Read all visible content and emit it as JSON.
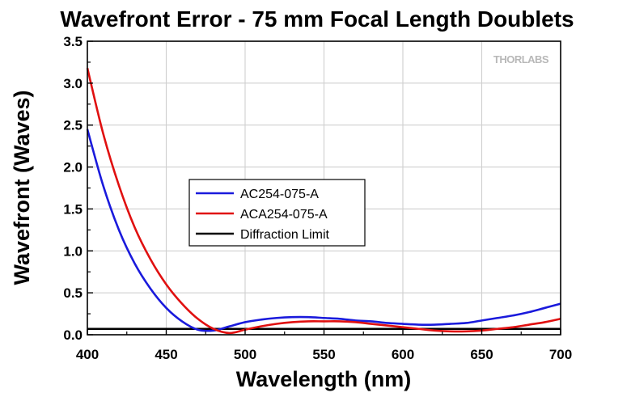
{
  "watermark": "THORLABS",
  "chart_data": {
    "type": "line",
    "title": "Wavefront Error - 75 mm Focal Length Doublets",
    "xlabel": "Wavelength (nm)",
    "ylabel": "Wavefront (Waves)",
    "xlim": [
      400,
      700
    ],
    "ylim": [
      0.0,
      3.5
    ],
    "xticks": [
      400,
      450,
      500,
      550,
      600,
      650,
      700
    ],
    "xtick_labels": [
      "400",
      "450",
      "500",
      "550",
      "600",
      "650",
      "700"
    ],
    "yticks": [
      0.0,
      0.5,
      1.0,
      1.5,
      2.0,
      2.5,
      3.0,
      3.5
    ],
    "ytick_labels": [
      "0.0",
      "0.5",
      "1.0",
      "1.5",
      "2.0",
      "2.5",
      "3.0",
      "3.5"
    ],
    "grid": true,
    "legend_position": "center-left",
    "series": [
      {
        "name": "AC254-075-A",
        "color": "#1a1adc",
        "x": [
          400,
          410,
          420,
          430,
          440,
          450,
          460,
          470,
          480,
          490,
          500,
          510,
          520,
          530,
          540,
          550,
          560,
          570,
          580,
          590,
          600,
          610,
          620,
          630,
          640,
          650,
          660,
          670,
          680,
          690,
          700
        ],
        "y": [
          2.45,
          1.78,
          1.25,
          0.85,
          0.55,
          0.32,
          0.16,
          0.06,
          0.05,
          0.1,
          0.15,
          0.18,
          0.2,
          0.21,
          0.21,
          0.2,
          0.19,
          0.17,
          0.16,
          0.14,
          0.13,
          0.12,
          0.12,
          0.13,
          0.14,
          0.17,
          0.2,
          0.23,
          0.27,
          0.32,
          0.37
        ]
      },
      {
        "name": "ACA254-075-A",
        "color": "#e01010",
        "x": [
          400,
          410,
          420,
          430,
          440,
          450,
          460,
          470,
          480,
          490,
          500,
          510,
          520,
          530,
          540,
          550,
          560,
          570,
          580,
          590,
          600,
          610,
          620,
          630,
          640,
          650,
          660,
          670,
          680,
          690,
          700
        ],
        "y": [
          3.18,
          2.4,
          1.78,
          1.28,
          0.9,
          0.6,
          0.37,
          0.19,
          0.07,
          0.02,
          0.06,
          0.1,
          0.13,
          0.15,
          0.16,
          0.16,
          0.16,
          0.15,
          0.13,
          0.11,
          0.09,
          0.07,
          0.05,
          0.04,
          0.04,
          0.05,
          0.07,
          0.09,
          0.12,
          0.15,
          0.19
        ]
      },
      {
        "name": "Diffraction Limit",
        "color": "#000000",
        "x": [
          400,
          700
        ],
        "y": [
          0.07,
          0.07
        ]
      }
    ]
  }
}
